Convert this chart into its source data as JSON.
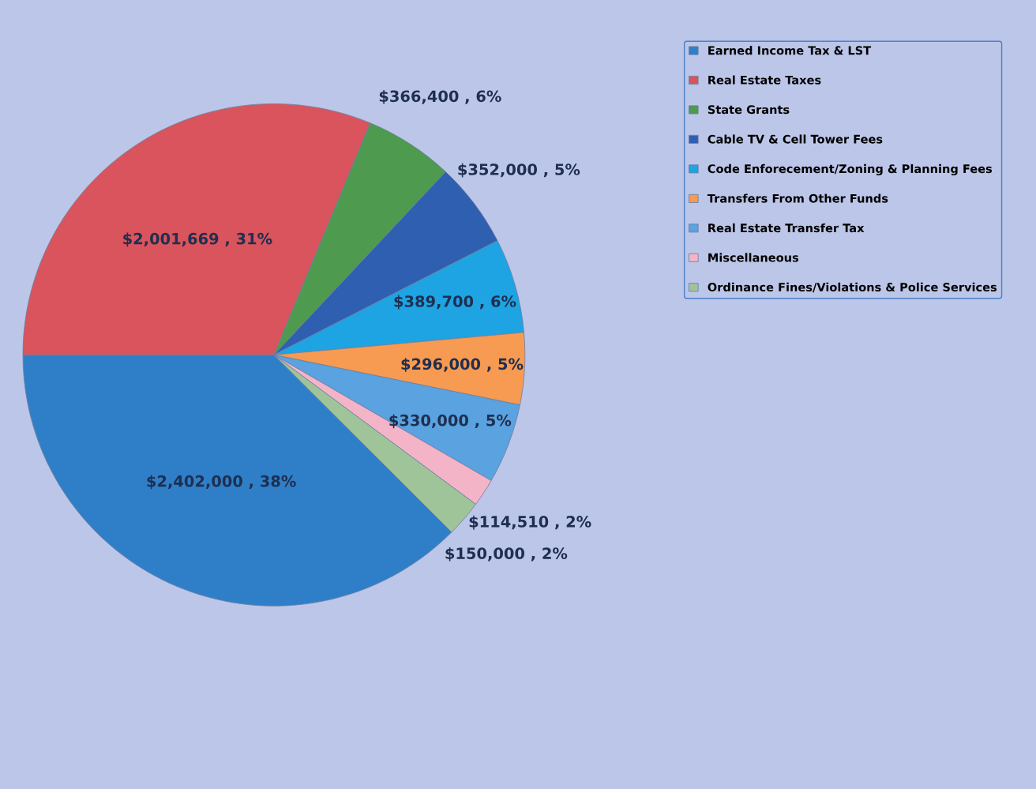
{
  "chart_data": {
    "type": "pie",
    "categories": [
      "Earned Income Tax & LST",
      "Real Estate Taxes",
      "State Grants",
      "Cable TV & Cell Tower Fees",
      "Code Enforecement/Zoning & Planning Fees",
      "Transfers From Other Funds",
      "Real Estate Transfer Tax",
      "Miscellaneous",
      "Ordinance Fines/Violations & Police Services"
    ],
    "values": [
      2402000,
      2001669,
      366400,
      352000,
      389700,
      296000,
      330000,
      114510,
      150000
    ],
    "value_labels": [
      "$2,402,000 , 38%",
      "$2,001,669 , 31%",
      "$366,400 , 6%",
      "$352,000 , 5%",
      "$389,700 , 6%",
      "$296,000 , 5%",
      "$330,000 , 5%",
      "$114,510 , 2%",
      "$150,000 , 2%"
    ],
    "colors": [
      "#2f7fc8",
      "#d9545c",
      "#4e9a4e",
      "#2e5fb0",
      "#1ea3e3",
      "#f79a52",
      "#5aa2e0",
      "#f4b4c8",
      "#9fc49a"
    ],
    "legend": "right"
  }
}
